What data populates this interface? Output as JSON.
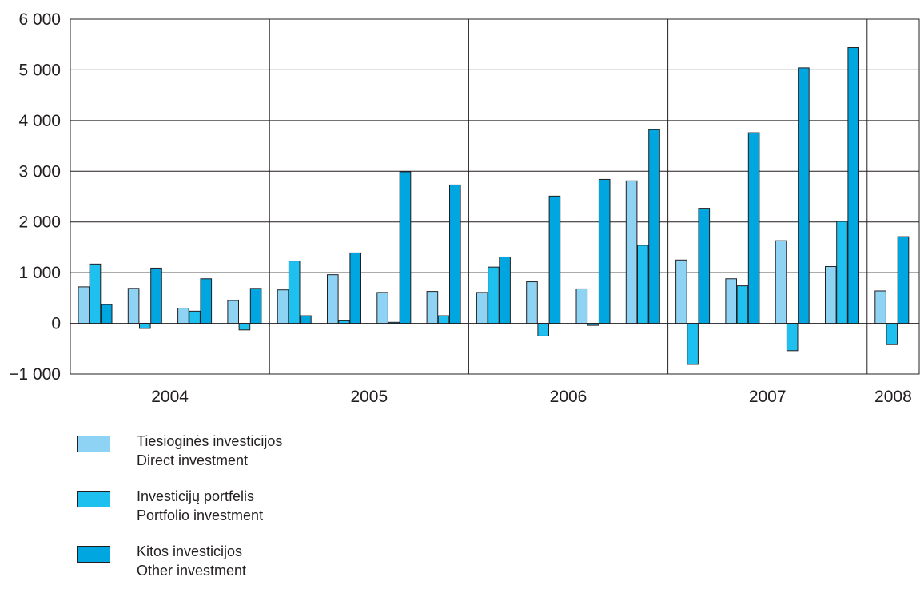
{
  "chart_data": {
    "type": "bar",
    "title": "",
    "xlabel": "",
    "ylabel": "",
    "ylim": [
      -1000,
      6000
    ],
    "yticks": [
      -1000,
      0,
      1000,
      2000,
      3000,
      4000,
      5000,
      6000
    ],
    "ytick_labels": [
      "−1 000",
      "0",
      "1 000",
      "2 000",
      "3 000",
      "4 000",
      "5 000",
      "6 000"
    ],
    "grid": true,
    "year_groups": [
      {
        "label": "2004",
        "quarters": 4
      },
      {
        "label": "2005",
        "quarters": 4
      },
      {
        "label": "2006",
        "quarters": 4
      },
      {
        "label": "2007",
        "quarters": 4
      },
      {
        "label": "2008",
        "quarters": 1
      }
    ],
    "categories": [
      "2004 Q1",
      "2004 Q2",
      "2004 Q3",
      "2004 Q4",
      "2005 Q1",
      "2005 Q2",
      "2005 Q3",
      "2005 Q4",
      "2006 Q1",
      "2006 Q2",
      "2006 Q3",
      "2006 Q4",
      "2007 Q1",
      "2007 Q2",
      "2007 Q3",
      "2007 Q4",
      "2008 Q1"
    ],
    "series": [
      {
        "name": "Tiesioginės investicijos / Direct investment",
        "color": "#8fd3f4",
        "values": [
          720,
          690,
          300,
          450,
          660,
          960,
          610,
          630,
          610,
          820,
          680,
          2810,
          1250,
          880,
          1630,
          1120,
          640
        ]
      },
      {
        "name": "Investicijų portfelis / Portfolio investment",
        "color": "#1ec0ef",
        "values": [
          1170,
          -100,
          240,
          -130,
          1230,
          50,
          20,
          150,
          1110,
          -250,
          -40,
          1540,
          -810,
          740,
          -540,
          2010,
          -420
        ]
      },
      {
        "name": "Kitos investicijos / Other investment",
        "color": "#00a6e0",
        "values": [
          370,
          1090,
          880,
          690,
          150,
          1390,
          2990,
          2730,
          1310,
          2510,
          2840,
          3820,
          2270,
          3760,
          5040,
          5440,
          1710
        ]
      }
    ]
  },
  "legend": [
    {
      "lt": "Tiesioginės investicijos",
      "en": "Direct investment",
      "color": "#8fd3f4"
    },
    {
      "lt": "Investicijų portfelis",
      "en": "Portfolio investment",
      "color": "#1ec0ef"
    },
    {
      "lt": "Kitos investicijos",
      "en": "Other investment",
      "color": "#00a6e0"
    }
  ]
}
